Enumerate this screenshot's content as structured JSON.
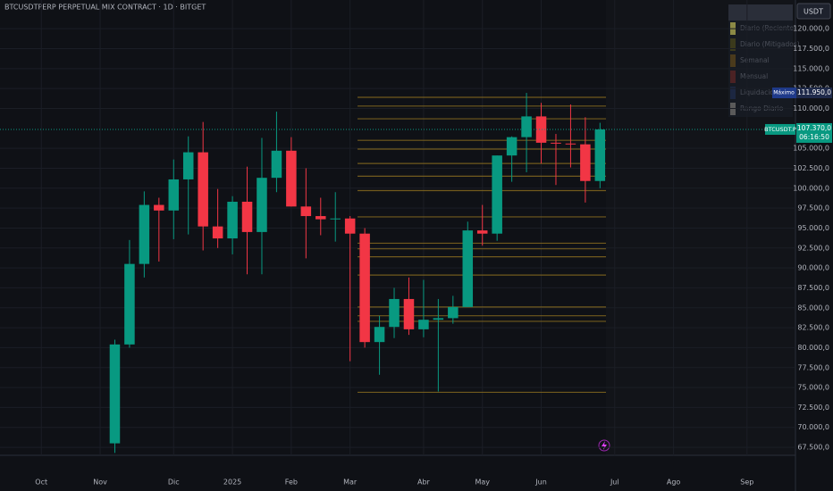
{
  "chart_data": {
    "type": "candlestick",
    "title": "BTCUSDTPERP PERPETUAL MIX CONTRACT · 1D · BITGET",
    "currency": "USDT",
    "symbol": "BTCUSDT.P",
    "countdown": "06:16:50",
    "last": {
      "value": 107370,
      "label": "107.370,0"
    },
    "high_marker": {
      "name": "Máximo",
      "value": 111950,
      "label": "111.950,0"
    },
    "categories": [
      "Oct",
      null,
      null,
      null,
      "Nov",
      null,
      null,
      null,
      null,
      "Dic",
      null,
      null,
      null,
      "2025",
      null,
      null,
      null,
      "Feb",
      null,
      null,
      null,
      "Mar",
      null,
      null,
      null,
      null,
      "Abr",
      null,
      null,
      null,
      "May",
      null,
      null,
      null,
      "Jun",
      null,
      null,
      null,
      null,
      "Jul",
      null,
      null,
      null,
      "Ago",
      null,
      null,
      null,
      null,
      "Sep",
      null,
      null,
      null
    ],
    "open": [
      null,
      null,
      null,
      null,
      null,
      68000,
      80400,
      90500,
      97900,
      97200,
      101100,
      104500,
      95200,
      93700,
      98300,
      94500,
      101300,
      104700,
      97700,
      96500,
      96100,
      96200,
      94300,
      80700,
      82600,
      86100,
      82300,
      83500,
      83700,
      85100,
      94700,
      94300,
      104100,
      106400,
      109000,
      105700,
      105600,
      105500,
      100900,
      null,
      null,
      null,
      null,
      null,
      null,
      null,
      null,
      null,
      null,
      null,
      null,
      null
    ],
    "high": [
      null,
      null,
      null,
      null,
      null,
      81000,
      93500,
      99600,
      98800,
      103600,
      106500,
      108300,
      99900,
      99000,
      102700,
      106300,
      109600,
      106400,
      102500,
      98800,
      99500,
      96500,
      95000,
      84000,
      87500,
      88800,
      88500,
      86100,
      86500,
      95800,
      97900,
      104100,
      106500,
      111950,
      110700,
      106800,
      110500,
      108900,
      108200,
      null,
      null,
      null,
      null,
      null,
      null,
      null,
      null,
      null,
      null,
      null,
      null,
      null
    ],
    "low": [
      null,
      null,
      null,
      null,
      null,
      66800,
      80000,
      88800,
      90800,
      93600,
      94200,
      92200,
      92500,
      91700,
      89200,
      89200,
      99500,
      97700,
      91200,
      94100,
      93300,
      78300,
      80000,
      76600,
      81200,
      81600,
      81300,
      74500,
      83000,
      85100,
      92800,
      93400,
      100800,
      102000,
      103100,
      100400,
      102600,
      98200,
      100000,
      null,
      null,
      null,
      null,
      null,
      null,
      null,
      null,
      null,
      null,
      null,
      null,
      null
    ],
    "close": [
      null,
      null,
      null,
      null,
      null,
      80400,
      90500,
      97900,
      97200,
      101100,
      104500,
      95200,
      93700,
      98300,
      94500,
      101300,
      104700,
      97700,
      96500,
      96100,
      96200,
      94300,
      80700,
      82600,
      86100,
      82300,
      83500,
      83700,
      85100,
      94700,
      94300,
      104100,
      106400,
      109000,
      105700,
      105600,
      105500,
      100900,
      107370,
      null,
      null,
      null,
      null,
      null,
      null,
      null,
      null,
      null,
      null,
      null,
      null,
      null
    ],
    "up_color": "#089981",
    "down_color": "#f23645",
    "levels": [
      111400,
      110300,
      108700,
      106000,
      104900,
      103100,
      101500,
      99700,
      96400,
      93100,
      92400,
      91400,
      89100,
      85100,
      84000,
      83300,
      74400
    ],
    "level_color": "#8a6d1f",
    "ylim": [
      66500,
      123600
    ],
    "yticks": [
      {
        "value": 67500,
        "label": "67.500,0"
      },
      {
        "value": 70000,
        "label": "70.000,0"
      },
      {
        "value": 72500,
        "label": "72.500,0"
      },
      {
        "value": 75000,
        "label": "75.000,0"
      },
      {
        "value": 77500,
        "label": "77.500,0"
      },
      {
        "value": 80000,
        "label": "80.000,0"
      },
      {
        "value": 82500,
        "label": "82.500,0"
      },
      {
        "value": 85000,
        "label": "85.000,0"
      },
      {
        "value": 87500,
        "label": "87.500,0"
      },
      {
        "value": 90000,
        "label": "90.000,0"
      },
      {
        "value": 92500,
        "label": "92.500,0"
      },
      {
        "value": 95000,
        "label": "95.000,0"
      },
      {
        "value": 97500,
        "label": "97.500,0"
      },
      {
        "value": 100000,
        "label": "100.000,0"
      },
      {
        "value": 102500,
        "label": "102.500,0"
      },
      {
        "value": 105000,
        "label": "105.000,0"
      },
      {
        "value": 110000,
        "label": "110.000,0"
      },
      {
        "value": 112500,
        "label": "112.500,0"
      },
      {
        "value": 115000,
        "label": "115.000,0"
      },
      {
        "value": 117500,
        "label": "117.500,0"
      },
      {
        "value": 120000,
        "label": "120.000,0"
      }
    ],
    "grid": true,
    "legend": [
      {
        "name": "Diario (Reciente)",
        "color": "#8c8a45"
      },
      {
        "name": "Diario (Mitigados)",
        "color": "#3b3a1c"
      },
      {
        "name": "Semanal",
        "color": "#4a3a1c"
      },
      {
        "name": "Mensual",
        "color": "#4b2224"
      },
      {
        "name": "Liquidaciones",
        "color": "#1c2741"
      },
      {
        "name": "Rango Diario",
        "color": "#5a5a5a"
      }
    ]
  }
}
